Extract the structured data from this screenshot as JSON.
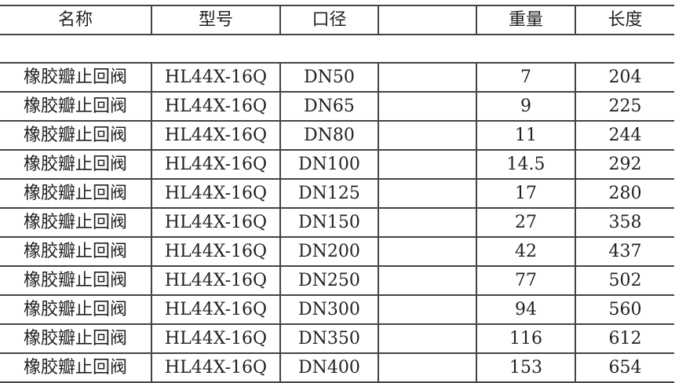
{
  "headers": [
    "名称",
    "型号",
    "口径",
    "",
    "重量",
    "长度"
  ],
  "rows": [
    [
      "橡胶瓣止回阀",
      "HL44X-16Q",
      "DN50",
      "",
      "7",
      "204"
    ],
    [
      "橡胶瓣止回阀",
      "HL44X-16Q",
      "DN65",
      "",
      "9",
      "225"
    ],
    [
      "橡胶瓣止回阀",
      "HL44X-16Q",
      "DN80",
      "",
      "11",
      "244"
    ],
    [
      "橡胶瓣止回阀",
      "HL44X-16Q",
      "DN100",
      "",
      "14.5",
      "292"
    ],
    [
      "橡胶瓣止回阀",
      "HL44X-16Q",
      "DN125",
      "",
      "17",
      "280"
    ],
    [
      "橡胶瓣止回阀",
      "HL44X-16Q",
      "DN150",
      "",
      "27",
      "358"
    ],
    [
      "橡胶瓣止回阀",
      "HL44X-16Q",
      "DN200",
      "",
      "42",
      "437"
    ],
    [
      "橡胶瓣止回阀",
      "HL44X-16Q",
      "DN250",
      "",
      "77",
      "502"
    ],
    [
      "橡胶瓣止回阀",
      "HL44X-16Q",
      "DN300",
      "",
      "94",
      "560"
    ],
    [
      "橡胶瓣止回阀",
      "HL44X-16Q",
      "DN350",
      "",
      "116",
      "612"
    ],
    [
      "橡胶瓣止回阀",
      "HL44X-16Q",
      "DN400",
      "",
      "153",
      "654"
    ]
  ]
}
